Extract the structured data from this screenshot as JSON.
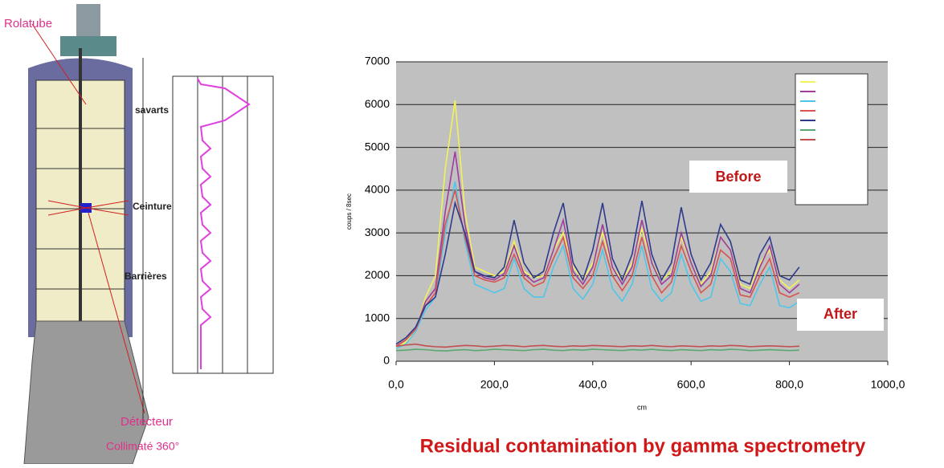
{
  "diagram": {
    "labels": [
      "Rolatube",
      "savarts",
      "Ceinture",
      "Barrières",
      "Détecteur",
      "Collimaté 360°"
    ]
  },
  "caption": "Residual contamination by gamma spectrometry",
  "chart_data": {
    "type": "line",
    "ylabel": "coups / 8sec",
    "xlabel": "cm",
    "annotations": [
      "Before",
      "After"
    ],
    "xlim": [
      0,
      1000
    ],
    "ylim": [
      0,
      7000
    ],
    "xticks": [
      {
        "value": 0,
        "label": "0,0"
      },
      {
        "value": 200,
        "label": "200,0"
      },
      {
        "value": 400,
        "label": "400,0"
      },
      {
        "value": 600,
        "label": "600,0"
      },
      {
        "value": 800,
        "label": "800,0"
      },
      {
        "value": 1000,
        "label": "1000,0"
      }
    ],
    "yticks": [
      0,
      1000,
      2000,
      3000,
      4000,
      5000,
      6000,
      7000
    ],
    "grid": true,
    "x": [
      0,
      20,
      40,
      60,
      80,
      100,
      120,
      140,
      160,
      180,
      200,
      220,
      240,
      260,
      280,
      300,
      320,
      340,
      360,
      380,
      400,
      420,
      440,
      460,
      480,
      500,
      520,
      540,
      560,
      580,
      600,
      620,
      640,
      660,
      680,
      700,
      720,
      740,
      760,
      780,
      800,
      820
    ],
    "series": [
      {
        "color": "#f2f25a",
        "values": [
          300,
          450,
          700,
          1500,
          2000,
          4500,
          6100,
          3500,
          2200,
          2100,
          2000,
          2100,
          2800,
          2100,
          1950,
          2000,
          2600,
          3000,
          2200,
          1900,
          2300,
          3000,
          2200,
          1900,
          2300,
          3100,
          2300,
          1900,
          2100,
          2900,
          2300,
          1800,
          2100,
          2900,
          2600,
          1800,
          1700,
          2300,
          2600,
          1900,
          1700,
          1900
        ]
      },
      {
        "color": "#a03c9c",
        "values": [
          350,
          500,
          750,
          1400,
          1700,
          3500,
          4900,
          3200,
          2100,
          1950,
          1900,
          2050,
          2700,
          2050,
          1850,
          1950,
          2600,
          3300,
          2100,
          1800,
          2200,
          3200,
          2200,
          1800,
          2200,
          3300,
          2300,
          1800,
          2000,
          3000,
          2300,
          1750,
          2000,
          2900,
          2600,
          1700,
          1600,
          2200,
          2700,
          1800,
          1600,
          1800
        ]
      },
      {
        "color": "#4fc6e8",
        "values": [
          300,
          400,
          700,
          1200,
          1500,
          3000,
          4200,
          2800,
          1800,
          1700,
          1600,
          1700,
          2400,
          1700,
          1500,
          1500,
          2200,
          2700,
          1700,
          1450,
          1800,
          2600,
          1700,
          1400,
          1800,
          2700,
          1700,
          1400,
          1600,
          2500,
          1800,
          1400,
          1500,
          2400,
          2100,
          1350,
          1300,
          1800,
          2200,
          1300,
          1250,
          1400
        ]
      },
      {
        "color": "#d9534f",
        "values": [
          350,
          500,
          750,
          1300,
          1600,
          3200,
          4000,
          2900,
          2000,
          1900,
          1850,
          1950,
          2500,
          1950,
          1750,
          1850,
          2400,
          2900,
          1950,
          1700,
          2000,
          2800,
          2000,
          1650,
          2000,
          2900,
          2000,
          1600,
          1850,
          2700,
          2100,
          1600,
          1800,
          2600,
          2400,
          1550,
          1500,
          2000,
          2400,
          1600,
          1500,
          1600
        ]
      },
      {
        "color": "#2e3a8c",
        "values": [
          400,
          550,
          800,
          1300,
          1500,
          2500,
          3700,
          3000,
          2100,
          2000,
          1950,
          2200,
          3300,
          2300,
          1950,
          2100,
          3000,
          3700,
          2300,
          1900,
          2600,
          3700,
          2400,
          1900,
          2500,
          3750,
          2500,
          1900,
          2300,
          3600,
          2500,
          1900,
          2300,
          3200,
          2800,
          1900,
          1800,
          2500,
          2900,
          2000,
          1900,
          2200
        ]
      },
      {
        "color": "#5aa870",
        "values": [
          250,
          260,
          280,
          270,
          250,
          240,
          260,
          270,
          250,
          260,
          280,
          270,
          260,
          250,
          270,
          280,
          260,
          250,
          270,
          260,
          280,
          270,
          260,
          250,
          270,
          260,
          280,
          260,
          250,
          270,
          260,
          250,
          270,
          260,
          280,
          270,
          250,
          260,
          270,
          260,
          250,
          260
        ]
      },
      {
        "color": "#c0504d",
        "values": [
          350,
          380,
          400,
          360,
          340,
          330,
          350,
          370,
          360,
          340,
          350,
          370,
          360,
          340,
          360,
          370,
          350,
          340,
          360,
          350,
          370,
          360,
          350,
          340,
          360,
          350,
          370,
          350,
          340,
          360,
          350,
          340,
          360,
          350,
          370,
          360,
          340,
          350,
          360,
          350,
          340,
          350
        ]
      }
    ]
  }
}
